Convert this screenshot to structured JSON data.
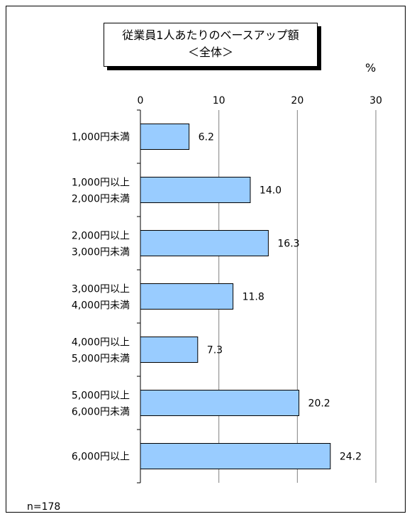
{
  "unit_label": "%",
  "sample_label": "n=178",
  "colors": {
    "bar": "#99ccff",
    "bar_stroke": "#000000",
    "grid": "#808080"
  },
  "chart_data": {
    "type": "bar",
    "orientation": "horizontal",
    "title": [
      "従業員1人あたりのベースアップ額",
      "＜全体＞"
    ],
    "xlim": [
      0,
      30
    ],
    "ticks": [
      0,
      10,
      20,
      30
    ],
    "tick_labels": [
      "0",
      "10",
      "20",
      "30"
    ],
    "axis_position": "top",
    "grid": true,
    "categories": [
      [
        "1,000円未満"
      ],
      [
        "1,000円以上",
        "2,000円未満"
      ],
      [
        "2,000円以上",
        "3,000円未満"
      ],
      [
        "3,000円以上",
        "4,000円未満"
      ],
      [
        "4,000円以上",
        "5,000円未満"
      ],
      [
        "5,000円以上",
        "6,000円未満"
      ],
      [
        "6,000円以上"
      ]
    ],
    "values": [
      6.2,
      14.0,
      16.3,
      11.8,
      7.3,
      20.2,
      24.2
    ],
    "value_labels": [
      "6.2",
      "14.0",
      "16.3",
      "11.8",
      "7.3",
      "20.2",
      "24.2"
    ]
  }
}
